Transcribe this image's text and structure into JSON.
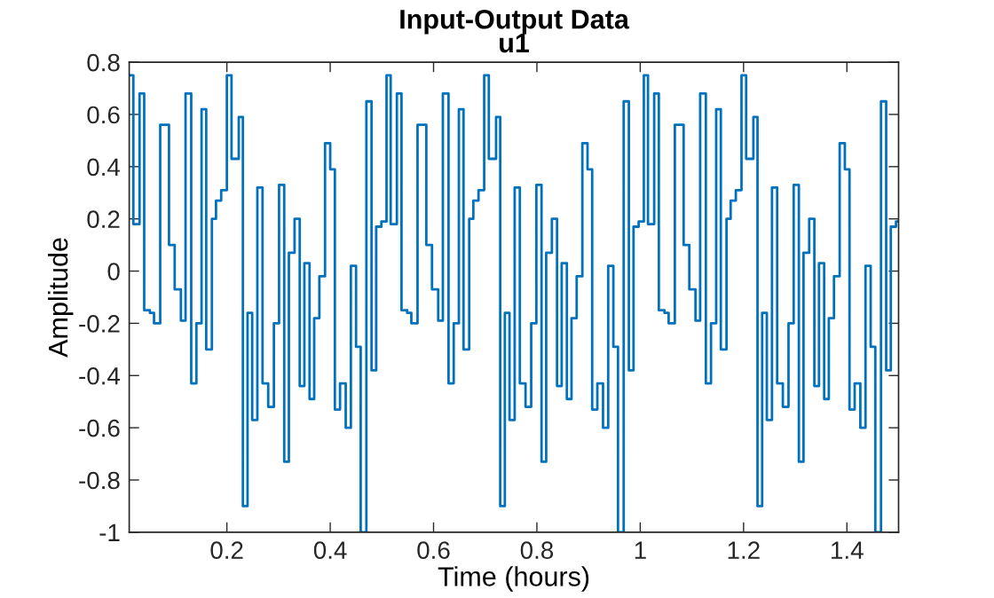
{
  "chart_data": {
    "type": "step",
    "title": "Input-Output Data",
    "subtitle": "u1",
    "xlabel": "Time (hours)",
    "ylabel": "Amplitude",
    "xlim": [
      0.011,
      1.5
    ],
    "xticks": [
      0.2,
      0.4,
      0.6,
      0.8,
      1,
      1.2,
      1.4
    ],
    "ylim": [
      -1,
      0.8
    ],
    "yticks": [
      -1,
      -0.8,
      -0.6,
      -0.4,
      -0.2,
      0,
      0.2,
      0.4,
      0.6,
      0.8
    ],
    "grid": false,
    "legend": false,
    "series": [
      {
        "color": "#0072bd",
        "x": [
          0.011,
          0.019,
          0.031,
          0.04,
          0.051,
          0.059,
          0.071,
          0.088,
          0.099,
          0.111,
          0.12,
          0.131,
          0.141,
          0.151,
          0.16,
          0.171,
          0.179,
          0.189,
          0.2,
          0.209,
          0.223,
          0.231,
          0.24,
          0.249,
          0.259,
          0.269,
          0.28,
          0.291,
          0.301,
          0.311,
          0.32,
          0.331,
          0.341,
          0.35,
          0.36,
          0.369,
          0.379,
          0.39,
          0.4,
          0.409,
          0.419,
          0.43,
          0.44,
          0.45,
          0.459,
          0.47,
          0.48,
          0.489,
          0.499,
          0.509,
          0.517,
          0.529,
          0.538,
          0.549,
          0.557,
          0.569,
          0.586,
          0.597,
          0.609,
          0.618,
          0.629,
          0.639,
          0.649,
          0.658,
          0.669,
          0.677,
          0.687,
          0.698,
          0.707,
          0.721,
          0.729,
          0.738,
          0.747,
          0.757,
          0.767,
          0.778,
          0.789,
          0.799,
          0.809,
          0.818,
          0.829,
          0.839,
          0.848,
          0.858,
          0.867,
          0.877,
          0.888,
          0.898,
          0.907,
          0.917,
          0.928,
          0.938,
          0.948,
          0.957,
          0.968,
          0.978,
          0.987,
          0.997,
          1.007,
          1.015,
          1.027,
          1.036,
          1.047,
          1.055,
          1.067,
          1.084,
          1.095,
          1.107,
          1.116,
          1.127,
          1.137,
          1.147,
          1.156,
          1.167,
          1.175,
          1.185,
          1.196,
          1.205,
          1.219,
          1.227,
          1.236,
          1.245,
          1.255,
          1.265,
          1.276,
          1.287,
          1.297,
          1.307,
          1.316,
          1.327,
          1.337,
          1.346,
          1.356,
          1.365,
          1.375,
          1.386,
          1.396,
          1.405,
          1.415,
          1.426,
          1.436,
          1.446,
          1.455,
          1.466,
          1.476,
          1.485,
          1.495,
          1.5
        ],
        "values": [
          0.75,
          0.18,
          0.68,
          -0.15,
          -0.16,
          -0.2,
          0.56,
          0.1,
          -0.07,
          -0.19,
          0.68,
          -0.43,
          -0.2,
          0.62,
          -0.3,
          0.2,
          0.27,
          0.31,
          0.75,
          0.43,
          0.59,
          -0.9,
          -0.16,
          -0.57,
          0.32,
          -0.43,
          -0.52,
          -0.2,
          0.33,
          -0.73,
          0.07,
          0.2,
          -0.44,
          0.03,
          -0.49,
          -0.18,
          -0.02,
          0.49,
          0.39,
          -0.53,
          -0.43,
          -0.6,
          0.02,
          -0.29,
          -1.0,
          0.65,
          -0.38,
          0.17,
          0.19,
          0.75,
          0.18,
          0.68,
          -0.15,
          -0.16,
          -0.2,
          0.56,
          0.1,
          -0.07,
          -0.19,
          0.68,
          -0.43,
          -0.2,
          0.62,
          -0.3,
          0.2,
          0.27,
          0.31,
          0.75,
          0.43,
          0.59,
          -0.9,
          -0.16,
          -0.57,
          0.32,
          -0.43,
          -0.52,
          -0.2,
          0.33,
          -0.73,
          0.07,
          0.2,
          -0.44,
          0.03,
          -0.49,
          -0.18,
          -0.02,
          0.49,
          0.39,
          -0.53,
          -0.43,
          -0.6,
          0.02,
          -0.29,
          -1.0,
          0.65,
          -0.38,
          0.17,
          0.19,
          0.75,
          0.18,
          0.68,
          -0.15,
          -0.16,
          -0.2,
          0.56,
          0.1,
          -0.07,
          -0.19,
          0.68,
          -0.43,
          -0.2,
          0.62,
          -0.3,
          0.2,
          0.27,
          0.31,
          0.75,
          0.43,
          0.59,
          -0.9,
          -0.16,
          -0.57,
          0.32,
          -0.43,
          -0.52,
          -0.2,
          0.33,
          -0.73,
          0.07,
          0.2,
          -0.44,
          0.03,
          -0.49,
          -0.18,
          -0.02,
          0.49,
          0.39,
          -0.53,
          -0.43,
          -0.6,
          0.02,
          -0.29,
          -1.0,
          0.65,
          -0.38,
          0.17,
          0.19,
          0.19
        ]
      }
    ]
  }
}
